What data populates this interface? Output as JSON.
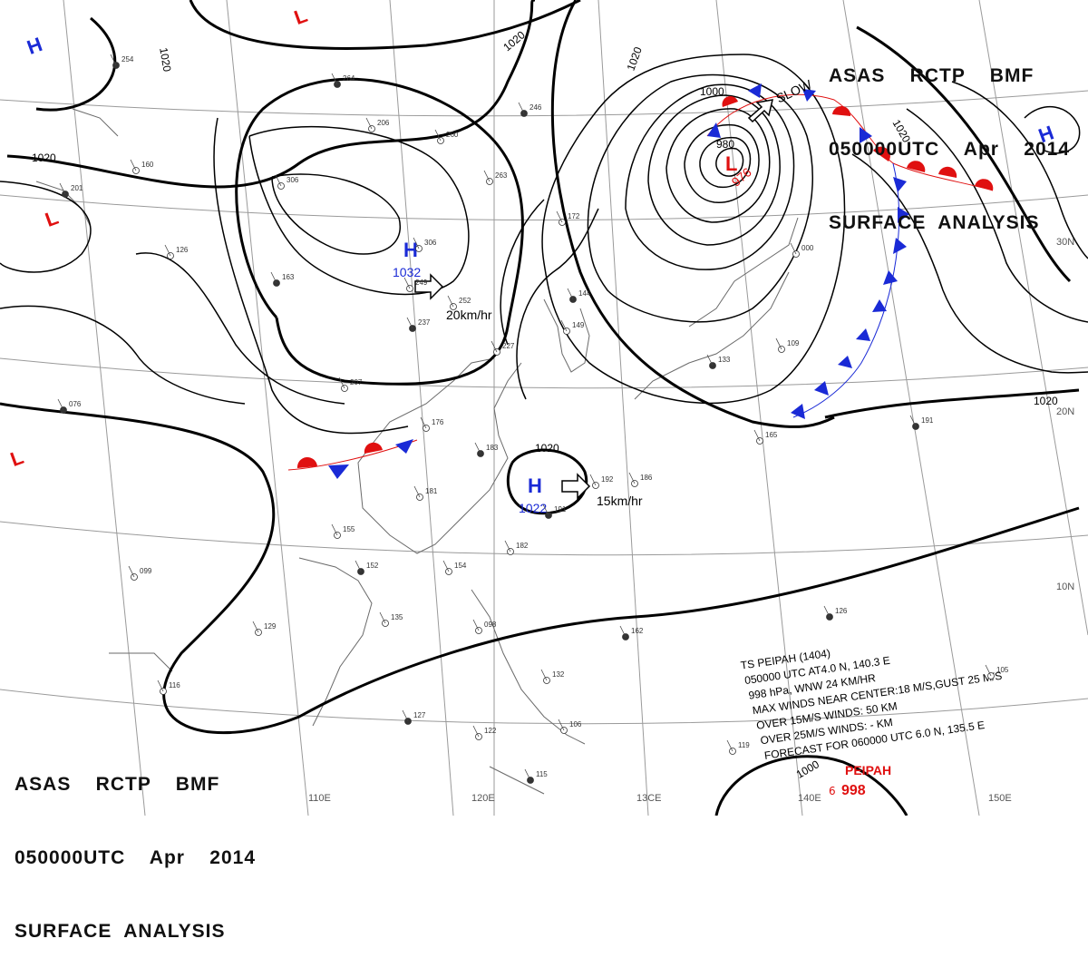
{
  "header": {
    "line1": "ASAS    RCTP    BMF",
    "line2": "050000UTC    Apr    2014",
    "line3": "SURFACE  ANALYSIS"
  },
  "grid_labels": {
    "lon": [
      "110E",
      "120E",
      "13CE",
      "140E",
      "150E"
    ],
    "lat": [
      "30N",
      "20N",
      "10N"
    ]
  },
  "isobar_labels": [
    "1020",
    "1020",
    "1020",
    "1020",
    "1020",
    "1000",
    "980",
    "1000"
  ],
  "centers": {
    "highs": [
      {
        "symbol": "H",
        "pressure": "1032"
      },
      {
        "symbol": "H",
        "pressure": "1022"
      },
      {
        "symbol": "H",
        "pressure": ""
      },
      {
        "symbol": "H",
        "pressure": ""
      }
    ],
    "lows": [
      {
        "symbol": "L",
        "pressure": "976"
      },
      {
        "symbol": "L",
        "pressure": ""
      },
      {
        "symbol": "L",
        "pressure": ""
      },
      {
        "symbol": "L",
        "pressure": ""
      }
    ]
  },
  "motions": [
    "20km/hr",
    "15km/hr",
    "SLOW"
  ],
  "typhoon": {
    "name": "PEIPAH",
    "pressure": "998",
    "warning": [
      "TS  PEIPAH  (1404)",
      "050000 UTC  AT4.0 N, 140.3 E",
      "998 hPa, WNW  24 KM/HR",
      "MAX WINDS NEAR CENTER:18 M/S,GUST 25 M/S",
      "OVER 15M/S WINDS: 50 KM",
      "OVER 25M/S WINDS: - KM",
      "FORECAST FOR 060000 UTC 6.0 N, 135.5 E"
    ]
  },
  "station_plots": [
    "254",
    "160",
    "126",
    "163",
    "207",
    "176",
    "183",
    "181",
    "155",
    "152",
    "135",
    "129",
    "127",
    "099",
    "116",
    "076",
    "306",
    "249",
    "237",
    "252",
    "263",
    "246",
    "260",
    "306",
    "264",
    "206",
    "172",
    "144",
    "149",
    "227",
    "133",
    "109",
    "165",
    "191",
    "186",
    "192",
    "191",
    "182",
    "154",
    "162",
    "132",
    "106",
    "115",
    "119",
    "105",
    "126",
    "098",
    "122",
    "201",
    "000"
  ],
  "colors": {
    "isobar": "#000000",
    "high": "#1a2ad6",
    "low": "#e01010",
    "cold_front": "#1a2ad6",
    "warm_front": "#e01010",
    "coast": "#666666",
    "grid": "#999999"
  }
}
